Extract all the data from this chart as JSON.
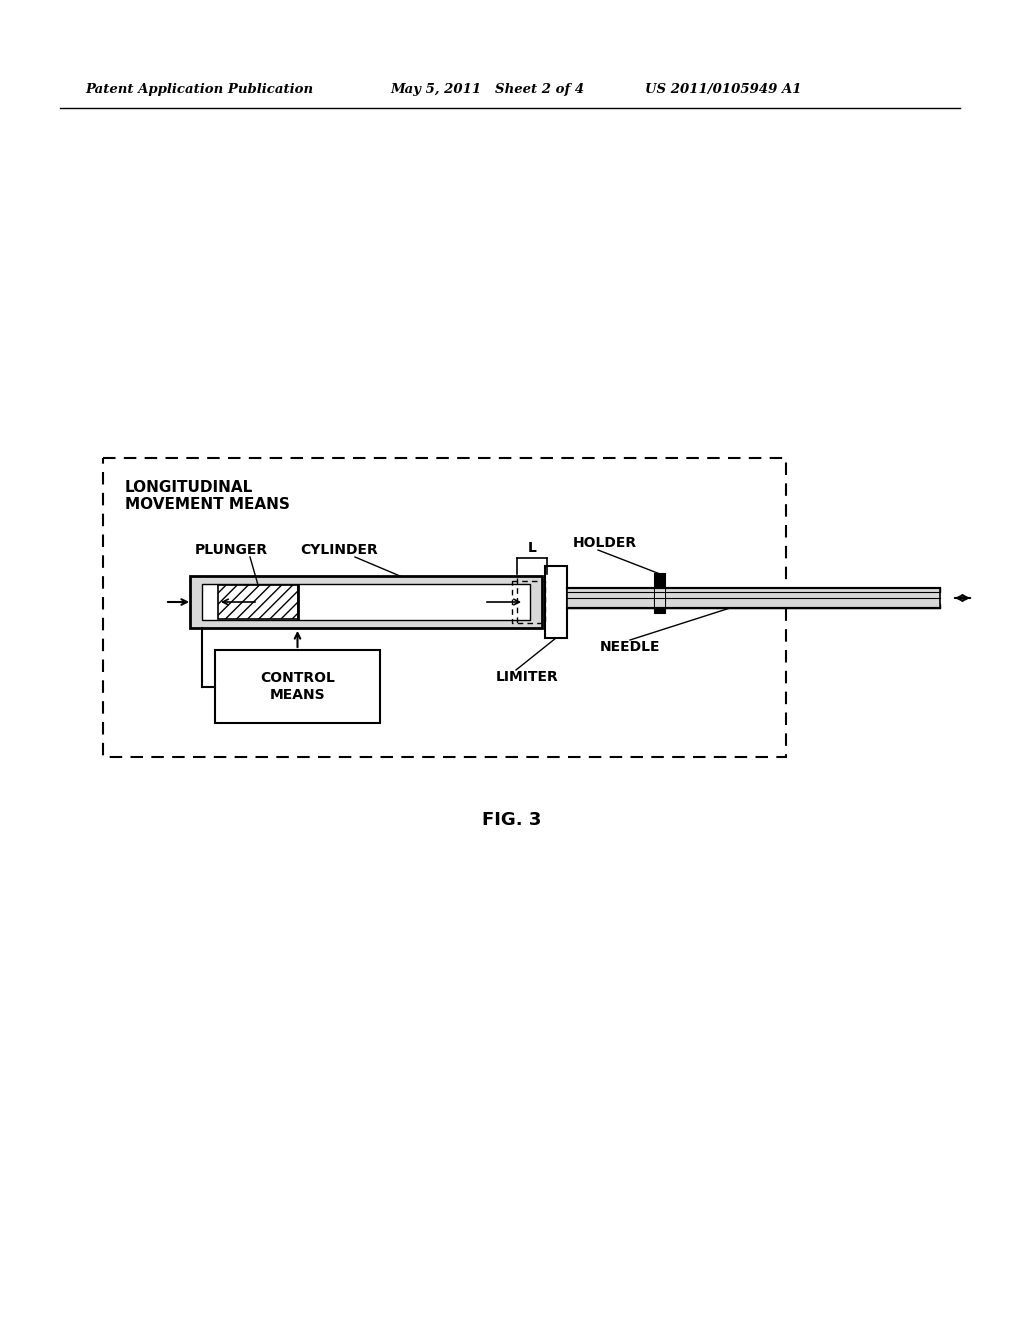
{
  "bg_color": "#ffffff",
  "header_left": "Patent Application Publication",
  "header_mid": "May 5, 2011   Sheet 2 of 4",
  "header_right": "US 2011/0105949 A1",
  "fig_label": "FIG. 3",
  "label_longitudinal": "LONGITUDINAL\nMOVEMENT MEANS",
  "label_plunger": "PLUNGER",
  "label_cylinder": "CYLINDER",
  "label_holder": "HOLDER",
  "label_limiter": "LIMITER",
  "label_needle": "NEEDLE",
  "label_control": "CONTROL\nMEANS",
  "label_L": "L"
}
